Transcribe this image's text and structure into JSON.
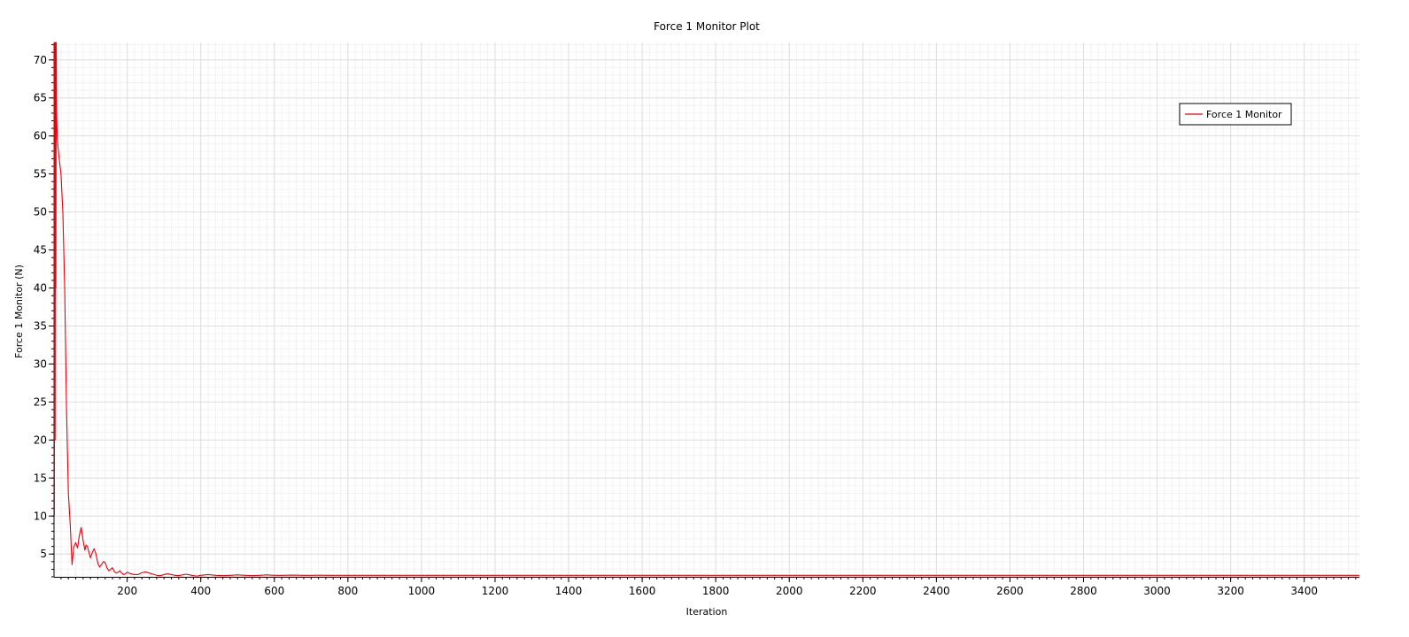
{
  "chart_data": {
    "type": "line",
    "title": "Force 1 Monitor Plot",
    "xlabel": "Iteration",
    "ylabel": "Force 1 Monitor (N)",
    "xlim": [
      1,
      3550
    ],
    "ylim": [
      2.0,
      72.3
    ],
    "xticks": [
      200,
      400,
      600,
      800,
      1000,
      1200,
      1400,
      1600,
      1800,
      2000,
      2200,
      2400,
      2600,
      2800,
      3000,
      3200,
      3400
    ],
    "yticks": [
      5,
      10,
      15,
      20,
      25,
      30,
      35,
      40,
      45,
      50,
      55,
      60,
      65,
      70
    ],
    "x_minor_step": 20,
    "y_minor_step": 1,
    "grid": true,
    "legend_position": "top-right",
    "series_color": "#e8000b",
    "series": [
      {
        "name": "Force 1 Monitor",
        "x": [
          1,
          2,
          3,
          4,
          5,
          6,
          7,
          8,
          10,
          15,
          20,
          25,
          30,
          35,
          40,
          45,
          50,
          55,
          60,
          65,
          70,
          75,
          80,
          85,
          88,
          92,
          96,
          100,
          105,
          110,
          115,
          120,
          125,
          130,
          135,
          140,
          145,
          150,
          155,
          160,
          165,
          170,
          175,
          180,
          185,
          190,
          195,
          200,
          210,
          220,
          230,
          240,
          250,
          260,
          270,
          280,
          290,
          300,
          310,
          320,
          330,
          340,
          350,
          360,
          370,
          380,
          390,
          400,
          420,
          440,
          460,
          480,
          500,
          520,
          540,
          560,
          580,
          600,
          625,
          650,
          675,
          700,
          725,
          750,
          800,
          850,
          900,
          950,
          1000,
          1100,
          1200,
          1400,
          1600,
          1800,
          2000,
          2500,
          3000,
          3550
        ],
        "values": [
          72.3,
          10,
          72.3,
          20,
          72.3,
          40,
          72.3,
          63,
          59.5,
          57,
          55,
          50,
          40,
          24,
          13,
          9,
          3.6,
          6,
          6.5,
          5.8,
          7.5,
          8.5,
          6.8,
          5.5,
          6.2,
          6.0,
          5.2,
          4.5,
          5.2,
          5.7,
          5.0,
          3.8,
          3.3,
          3.6,
          4.0,
          3.9,
          3.2,
          2.8,
          3.0,
          3.2,
          2.7,
          2.5,
          2.6,
          2.8,
          2.5,
          2.3,
          2.4,
          2.6,
          2.4,
          2.3,
          2.3,
          2.55,
          2.65,
          2.5,
          2.35,
          2.2,
          2.15,
          2.3,
          2.4,
          2.3,
          2.2,
          2.15,
          2.25,
          2.35,
          2.25,
          2.15,
          2.1,
          2.2,
          2.3,
          2.2,
          2.15,
          2.2,
          2.25,
          2.2,
          2.15,
          2.2,
          2.25,
          2.2,
          2.2,
          2.22,
          2.2,
          2.2,
          2.21,
          2.2,
          2.2,
          2.2,
          2.2,
          2.2,
          2.2,
          2.2,
          2.2,
          2.2,
          2.2,
          2.2,
          2.2,
          2.2,
          2.2,
          2.2
        ]
      }
    ]
  }
}
